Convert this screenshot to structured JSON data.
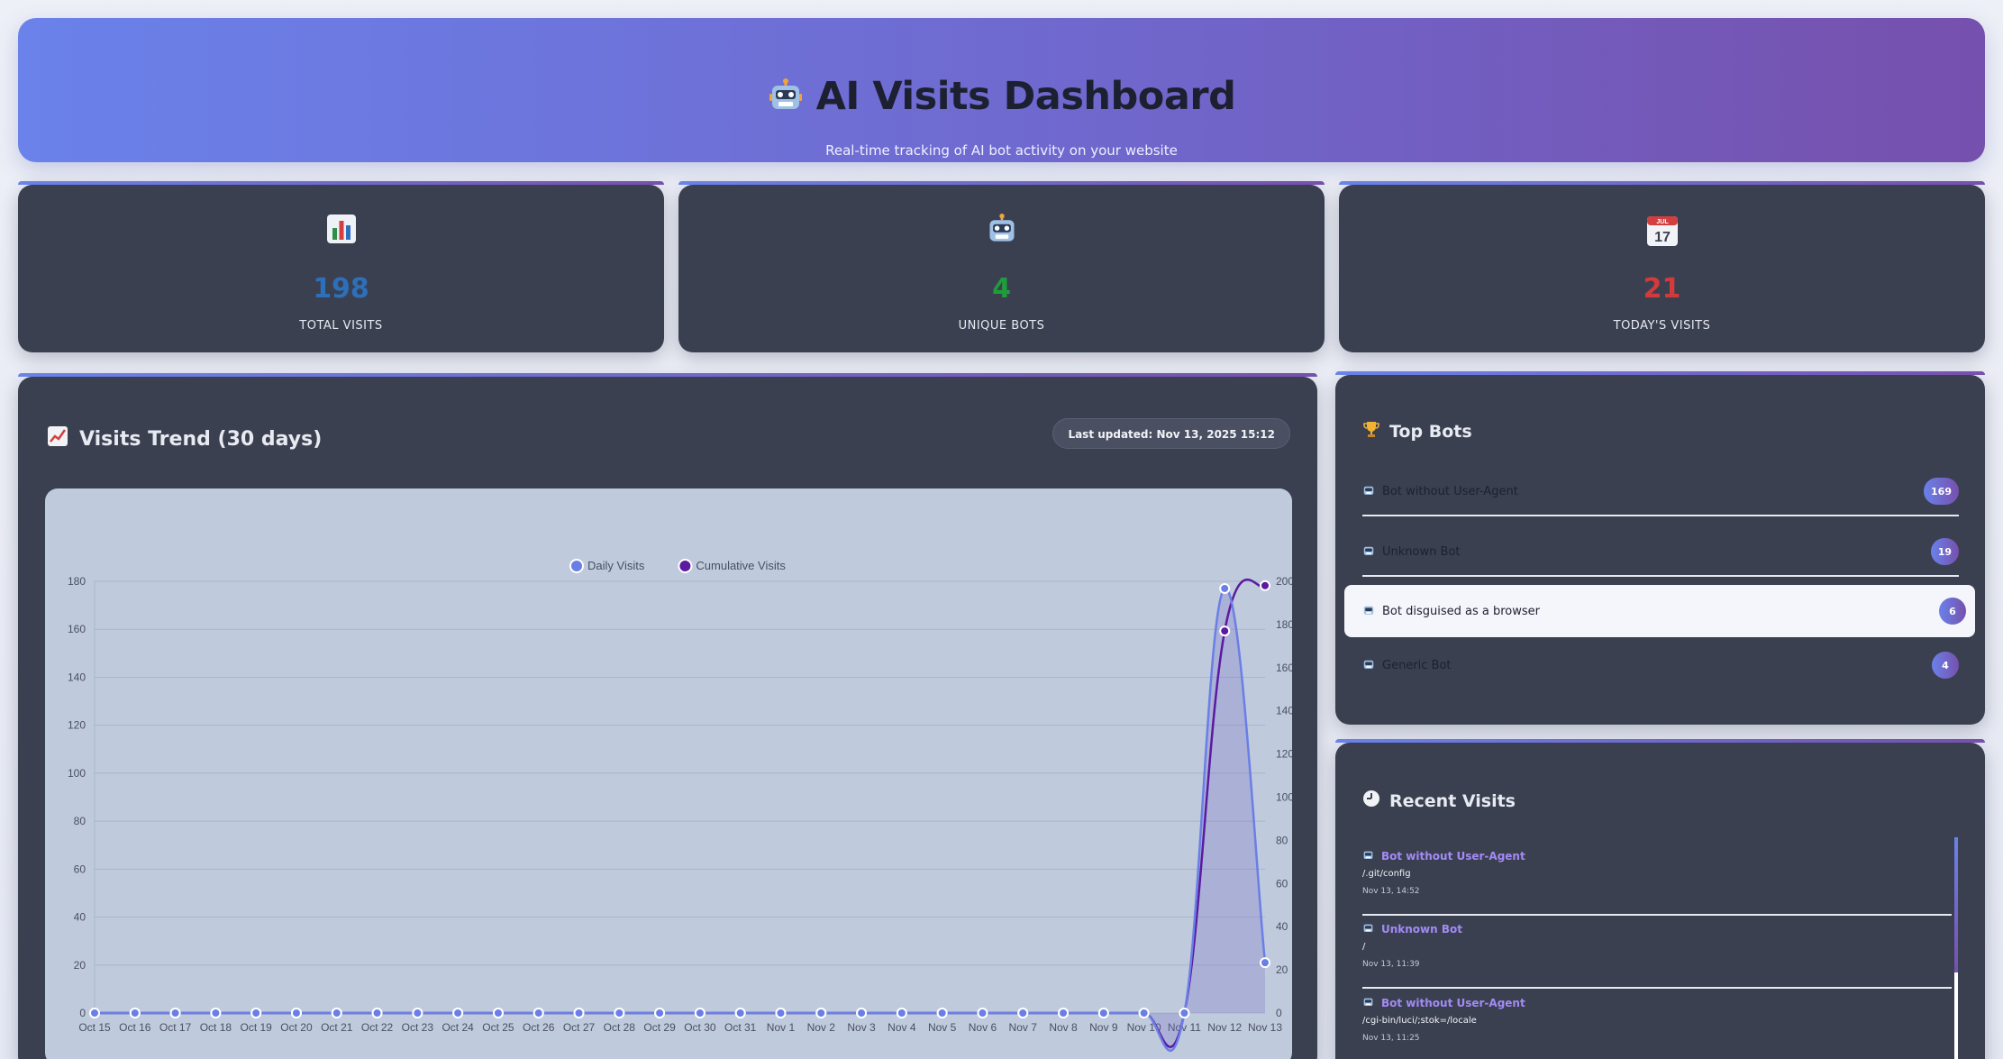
{
  "header": {
    "title": "AI Visits Dashboard",
    "subtitle": "Real-time tracking of AI bot activity on your website"
  },
  "stats": [
    {
      "icon": "bar-chart-icon",
      "value": "198",
      "label": "TOTAL VISITS",
      "color": "#2d6fb8"
    },
    {
      "icon": "robot-icon",
      "value": "4",
      "label": "UNIQUE BOTS",
      "color": "#1e9e3a"
    },
    {
      "icon": "calendar-icon",
      "value": "21",
      "label": "TODAY'S VISITS",
      "color": "#d23b3b"
    }
  ],
  "trend": {
    "title": "Visits Trend (30 days)",
    "updated": "Last updated: Nov 13, 2025 15:12"
  },
  "chart_data": {
    "type": "line",
    "x": [
      "Oct 15",
      "Oct 16",
      "Oct 17",
      "Oct 18",
      "Oct 19",
      "Oct 20",
      "Oct 21",
      "Oct 22",
      "Oct 23",
      "Oct 24",
      "Oct 25",
      "Oct 26",
      "Oct 27",
      "Oct 28",
      "Oct 29",
      "Oct 30",
      "Oct 31",
      "Nov 1",
      "Nov 2",
      "Nov 3",
      "Nov 4",
      "Nov 5",
      "Nov 6",
      "Nov 7",
      "Nov 8",
      "Nov 9",
      "Nov 10",
      "Nov 11",
      "Nov 12",
      "Nov 13"
    ],
    "series": [
      {
        "name": "Daily Visits",
        "axis": "left",
        "color": "#6a7fe6",
        "values": [
          0,
          0,
          0,
          0,
          0,
          0,
          0,
          0,
          0,
          0,
          0,
          0,
          0,
          0,
          0,
          0,
          0,
          0,
          0,
          0,
          0,
          0,
          0,
          0,
          0,
          0,
          0,
          0,
          177,
          21
        ]
      },
      {
        "name": "Cumulative Visits",
        "axis": "right",
        "color": "#5b1aa0",
        "values": [
          0,
          0,
          0,
          0,
          0,
          0,
          0,
          0,
          0,
          0,
          0,
          0,
          0,
          0,
          0,
          0,
          0,
          0,
          0,
          0,
          0,
          0,
          0,
          0,
          0,
          0,
          0,
          0,
          177,
          198
        ]
      }
    ],
    "left_axis": {
      "ylim": [
        0,
        180
      ],
      "ticks": [
        0,
        20,
        40,
        60,
        80,
        100,
        120,
        140,
        160,
        180
      ]
    },
    "right_axis": {
      "ylim": [
        0,
        200
      ],
      "ticks": [
        0,
        20,
        40,
        60,
        80,
        100,
        120,
        140,
        160,
        180,
        200
      ]
    },
    "legend": "top-center",
    "grid": true
  },
  "top_bots": {
    "title": "Top Bots",
    "items": [
      {
        "name": "Bot without User-Agent",
        "count": "169"
      },
      {
        "name": "Unknown Bot",
        "count": "19"
      },
      {
        "name": "Bot disguised as a browser",
        "count": "6"
      },
      {
        "name": "Generic Bot",
        "count": "4"
      }
    ]
  },
  "recent": {
    "title": "Recent Visits",
    "items": [
      {
        "bot": "Bot without User-Agent",
        "path": "/.git/config",
        "time": "Nov 13, 14:52"
      },
      {
        "bot": "Unknown Bot",
        "path": "/",
        "time": "Nov 13, 11:39"
      },
      {
        "bot": "Bot without User-Agent",
        "path": "/cgi-bin/luci/;stok=/locale",
        "time": "Nov 13, 11:25"
      }
    ]
  }
}
